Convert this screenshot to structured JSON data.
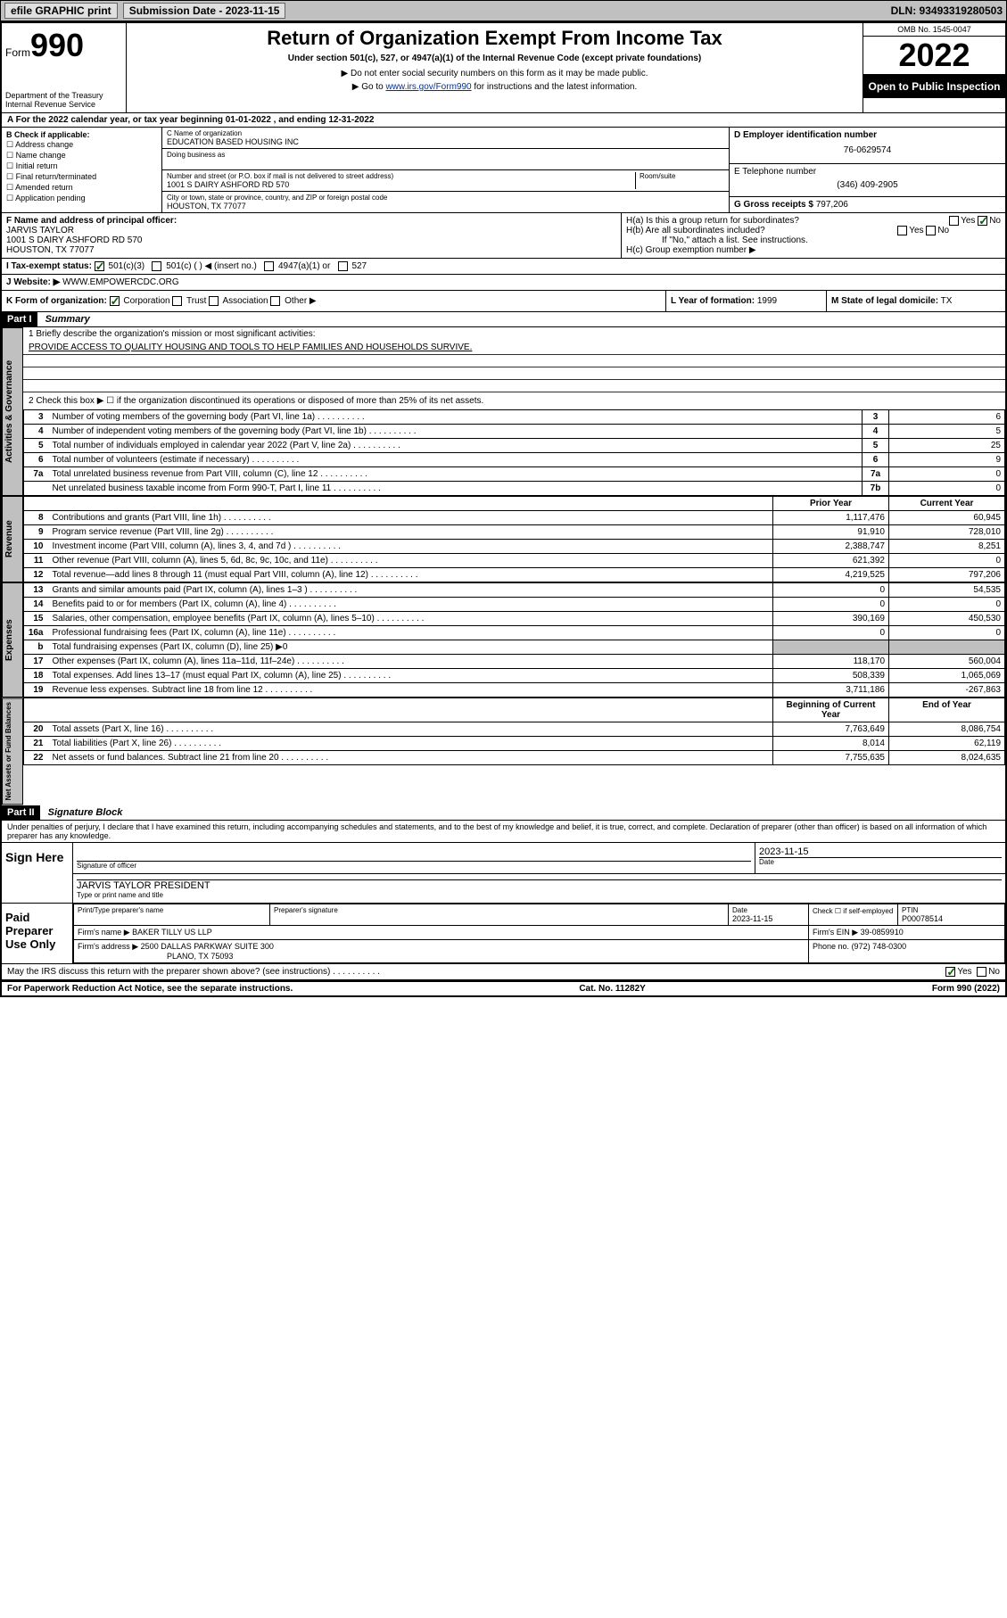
{
  "topbar": {
    "efile": "efile GRAPHIC print",
    "sub_label": "Submission Date - 2023-11-15",
    "dln": "DLN: 93493319280503"
  },
  "header": {
    "form_prefix": "Form",
    "form_no": "990",
    "dept": "Department of the Treasury",
    "irs": "Internal Revenue Service",
    "title": "Return of Organization Exempt From Income Tax",
    "subtitle": "Under section 501(c), 527, or 4947(a)(1) of the Internal Revenue Code (except private foundations)",
    "no_ssn": "▶ Do not enter social security numbers on this form as it may be made public.",
    "goto_prefix": "▶ Go to ",
    "goto_url": "www.irs.gov/Form990",
    "goto_suffix": " for instructions and the latest information.",
    "omb": "OMB No. 1545-0047",
    "year": "2022",
    "open": "Open to Public Inspection"
  },
  "lineA": "A For the 2022 calendar year, or tax year beginning 01-01-2022   , and ending 12-31-2022",
  "boxB": {
    "label": "B Check if applicable:",
    "items": [
      "Address change",
      "Name change",
      "Initial return",
      "Final return/terminated",
      "Amended return",
      "Application pending"
    ]
  },
  "boxC": {
    "name_label": "C Name of organization",
    "name": "EDUCATION BASED HOUSING INC",
    "dba_label": "Doing business as",
    "street_label": "Number and street (or P.O. box if mail is not delivered to street address)",
    "street": "1001 S DAIRY ASHFORD RD 570",
    "room_label": "Room/suite",
    "city_label": "City or town, state or province, country, and ZIP or foreign postal code",
    "city": "HOUSTON, TX  77077"
  },
  "boxD": {
    "label": "D Employer identification number",
    "val": "76-0629574"
  },
  "boxE": {
    "label": "E Telephone number",
    "val": "(346) 409-2905"
  },
  "boxG": {
    "label": "G Gross receipts $",
    "val": "797,206"
  },
  "boxF": {
    "label": "F Name and address of principal officer:",
    "name": "JARVIS TAYLOR",
    "addr1": "1001 S DAIRY ASHFORD RD 570",
    "addr2": "HOUSTON, TX  77077"
  },
  "boxH": {
    "a": "H(a)  Is this a group return for subordinates?",
    "b": "H(b)  Are all subordinates included?",
    "b_note": "If \"No,\" attach a list. See instructions.",
    "c": "H(c)  Group exemption number ▶"
  },
  "lineI": {
    "label": "I   Tax-exempt status:",
    "opts": [
      "501(c)(3)",
      "501(c) (  ) ◀ (insert no.)",
      "4947(a)(1) or",
      "527"
    ]
  },
  "lineJ": {
    "label": "J   Website: ▶",
    "val": "WWW.EMPOWERCDC.ORG"
  },
  "lineK": {
    "label": "K Form of organization:",
    "opts": [
      "Corporation",
      "Trust",
      "Association",
      "Other ▶"
    ]
  },
  "lineL": {
    "label": "L Year of formation:",
    "val": "1999"
  },
  "lineM": {
    "label": "M State of legal domicile:",
    "val": "TX"
  },
  "partI": {
    "tag": "Part I",
    "title": "Summary",
    "mission_label": "1   Briefly describe the organization's mission or most significant activities:",
    "mission": "PROVIDE ACCESS TO QUALITY HOUSING AND TOOLS TO HELP FAMILIES AND HOUSEHOLDS SURVIVE.",
    "line2": "2   Check this box ▶ ☐  if the organization discontinued its operations or disposed of more than 25% of its net assets.",
    "governance": [
      {
        "n": "3",
        "d": "Number of voting members of the governing body (Part VI, line 1a)",
        "b": "3",
        "v": "6"
      },
      {
        "n": "4",
        "d": "Number of independent voting members of the governing body (Part VI, line 1b)",
        "b": "4",
        "v": "5"
      },
      {
        "n": "5",
        "d": "Total number of individuals employed in calendar year 2022 (Part V, line 2a)",
        "b": "5",
        "v": "25"
      },
      {
        "n": "6",
        "d": "Total number of volunteers (estimate if necessary)",
        "b": "6",
        "v": "9"
      },
      {
        "n": "7a",
        "d": "Total unrelated business revenue from Part VIII, column (C), line 12",
        "b": "7a",
        "v": "0"
      },
      {
        "n": "",
        "d": "Net unrelated business taxable income from Form 990-T, Part I, line 11",
        "b": "7b",
        "v": "0"
      }
    ],
    "col_prior": "Prior Year",
    "col_current": "Current Year",
    "revenue": [
      {
        "n": "8",
        "d": "Contributions and grants (Part VIII, line 1h)",
        "p": "1,117,476",
        "c": "60,945"
      },
      {
        "n": "9",
        "d": "Program service revenue (Part VIII, line 2g)",
        "p": "91,910",
        "c": "728,010"
      },
      {
        "n": "10",
        "d": "Investment income (Part VIII, column (A), lines 3, 4, and 7d )",
        "p": "2,388,747",
        "c": "8,251"
      },
      {
        "n": "11",
        "d": "Other revenue (Part VIII, column (A), lines 5, 6d, 8c, 9c, 10c, and 11e)",
        "p": "621,392",
        "c": "0"
      },
      {
        "n": "12",
        "d": "Total revenue—add lines 8 through 11 (must equal Part VIII, column (A), line 12)",
        "p": "4,219,525",
        "c": "797,206"
      }
    ],
    "expenses": [
      {
        "n": "13",
        "d": "Grants and similar amounts paid (Part IX, column (A), lines 1–3 )",
        "p": "0",
        "c": "54,535"
      },
      {
        "n": "14",
        "d": "Benefits paid to or for members (Part IX, column (A), line 4)",
        "p": "0",
        "c": "0"
      },
      {
        "n": "15",
        "d": "Salaries, other compensation, employee benefits (Part IX, column (A), lines 5–10)",
        "p": "390,169",
        "c": "450,530"
      },
      {
        "n": "16a",
        "d": "Professional fundraising fees (Part IX, column (A), line 11e)",
        "p": "0",
        "c": "0"
      },
      {
        "n": "b",
        "d": "Total fundraising expenses (Part IX, column (D), line 25) ▶0",
        "p": "",
        "c": ""
      },
      {
        "n": "17",
        "d": "Other expenses (Part IX, column (A), lines 11a–11d, 11f–24e)",
        "p": "118,170",
        "c": "560,004"
      },
      {
        "n": "18",
        "d": "Total expenses. Add lines 13–17 (must equal Part IX, column (A), line 25)",
        "p": "508,339",
        "c": "1,065,069"
      },
      {
        "n": "19",
        "d": "Revenue less expenses. Subtract line 18 from line 12",
        "p": "3,711,186",
        "c": "-267,863"
      }
    ],
    "col_begin": "Beginning of Current Year",
    "col_end": "End of Year",
    "netassets": [
      {
        "n": "20",
        "d": "Total assets (Part X, line 16)",
        "p": "7,763,649",
        "c": "8,086,754"
      },
      {
        "n": "21",
        "d": "Total liabilities (Part X, line 26)",
        "p": "8,014",
        "c": "62,119"
      },
      {
        "n": "22",
        "d": "Net assets or fund balances. Subtract line 21 from line 20",
        "p": "7,755,635",
        "c": "8,024,635"
      }
    ],
    "vlabels": {
      "gov": "Activities & Governance",
      "rev": "Revenue",
      "exp": "Expenses",
      "net": "Net Assets or Fund Balances"
    }
  },
  "partII": {
    "tag": "Part II",
    "title": "Signature Block",
    "penalty": "Under penalties of perjury, I declare that I have examined this return, including accompanying schedules and statements, and to the best of my knowledge and belief, it is true, correct, and complete. Declaration of preparer (other than officer) is based on all information of which preparer has any knowledge.",
    "sign_here": "Sign Here",
    "sig_of_officer": "Signature of officer",
    "sig_date": "2023-11-15",
    "date_label": "Date",
    "officer_name": "JARVIS TAYLOR  PRESIDENT",
    "officer_type_label": "Type or print name and title",
    "paid_prep": "Paid Preparer Use Only",
    "prep_name_label": "Print/Type preparer's name",
    "prep_sig_label": "Preparer's signature",
    "prep_date_label": "Date",
    "prep_date": "2023-11-15",
    "prep_check": "Check ☐ if self-employed",
    "ptin_label": "PTIN",
    "ptin": "P00078514",
    "firm_name_label": "Firm's name    ▶",
    "firm_name": "BAKER TILLY US LLP",
    "firm_ein_label": "Firm's EIN ▶",
    "firm_ein": "39-0859910",
    "firm_addr_label": "Firm's address ▶",
    "firm_addr1": "2500 DALLAS PARKWAY SUITE 300",
    "firm_addr2": "PLANO, TX  75093",
    "firm_phone_label": "Phone no.",
    "firm_phone": "(972) 748-0300",
    "may_irs": "May the IRS discuss this return with the preparer shown above? (see instructions)"
  },
  "footer": {
    "left": "For Paperwork Reduction Act Notice, see the separate instructions.",
    "mid": "Cat. No. 11282Y",
    "right": "Form 990 (2022)"
  }
}
